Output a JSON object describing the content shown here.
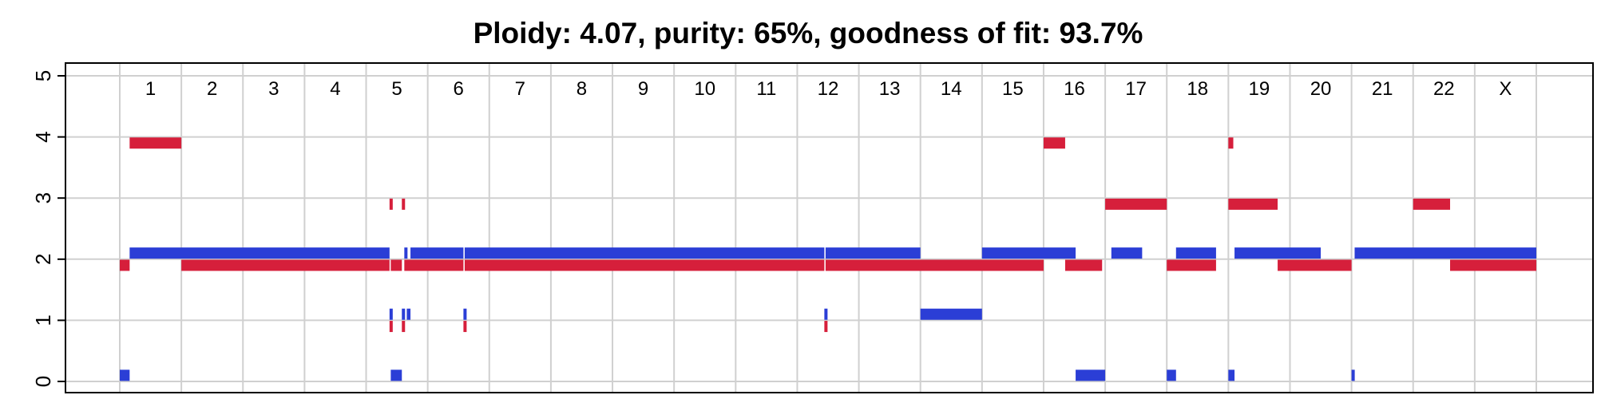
{
  "chart_data": {
    "type": "segments",
    "title": "Ploidy: 4.07, purity: 65%, goodness of fit: 93.7%",
    "xlabel": "",
    "ylabel": "",
    "ylim": [
      0,
      5
    ],
    "yticks": [
      "0",
      "1",
      "2",
      "3",
      "4",
      "5"
    ],
    "grid": true,
    "x_unit": "genome position (chromosome index, cumulative)",
    "chromosomes": [
      "1",
      "2",
      "3",
      "4",
      "5",
      "6",
      "7",
      "8",
      "9",
      "10",
      "11",
      "12",
      "13",
      "14",
      "15",
      "16",
      "17",
      "18",
      "19",
      "20",
      "21",
      "22",
      "X"
    ],
    "chromosome_boundaries": [
      1.0,
      2.0,
      3.0,
      4.0,
      5.0,
      6.0,
      7.0,
      8.0,
      9.0,
      10.0,
      11.0,
      12.0,
      13.0,
      14.0,
      15.0,
      16.0,
      17.0,
      18.0,
      19.0,
      20.0,
      21.0,
      22.0,
      23.0
    ],
    "series": [
      {
        "name": "",
        "color": "#2b3ed6",
        "segments": [
          {
            "x0": 0.0,
            "x1": 0.16,
            "y": 0.1
          },
          {
            "x0": 0.16,
            "x1": 4.38,
            "y": 2.1
          },
          {
            "x0": 4.38,
            "x1": 4.4,
            "y": 1.1
          },
          {
            "x0": 4.4,
            "x1": 4.58,
            "y": 0.1
          },
          {
            "x0": 4.58,
            "x1": 4.62,
            "y": 1.1
          },
          {
            "x0": 4.62,
            "x1": 4.66,
            "y": 2.1
          },
          {
            "x0": 4.66,
            "x1": 4.72,
            "y": 1.1
          },
          {
            "x0": 4.72,
            "x1": 5.58,
            "y": 2.1
          },
          {
            "x0": 5.58,
            "x1": 5.6,
            "y": 1.1
          },
          {
            "x0": 5.6,
            "x1": 11.44,
            "y": 2.1
          },
          {
            "x0": 11.44,
            "x1": 11.46,
            "y": 1.1
          },
          {
            "x0": 11.46,
            "x1": 13.0,
            "y": 2.1
          },
          {
            "x0": 13.0,
            "x1": 14.0,
            "y": 1.1
          },
          {
            "x0": 14.0,
            "x1": 15.52,
            "y": 2.1
          },
          {
            "x0": 15.52,
            "x1": 16.0,
            "y": 0.1
          },
          {
            "x0": 16.1,
            "x1": 16.6,
            "y": 2.1
          },
          {
            "x0": 17.0,
            "x1": 17.15,
            "y": 0.1
          },
          {
            "x0": 17.15,
            "x1": 17.8,
            "y": 2.1
          },
          {
            "x0": 18.0,
            "x1": 18.1,
            "y": 0.1
          },
          {
            "x0": 18.1,
            "x1": 19.5,
            "y": 2.1
          },
          {
            "x0": 20.0,
            "x1": 20.05,
            "y": 0.1
          },
          {
            "x0": 20.05,
            "x1": 23.0,
            "y": 2.1
          }
        ]
      },
      {
        "name": "",
        "color": "#d61f3b",
        "segments": [
          {
            "x0": 0.0,
            "x1": 0.16,
            "y": 1.9
          },
          {
            "x0": 0.16,
            "x1": 1.0,
            "y": 3.9
          },
          {
            "x0": 1.0,
            "x1": 4.38,
            "y": 1.9
          },
          {
            "x0": 4.38,
            "x1": 4.4,
            "y": 2.9
          },
          {
            "x0": 4.38,
            "x1": 4.4,
            "y": 0.9
          },
          {
            "x0": 4.4,
            "x1": 4.58,
            "y": 1.9
          },
          {
            "x0": 4.58,
            "x1": 4.62,
            "y": 2.9
          },
          {
            "x0": 4.58,
            "x1": 4.62,
            "y": 0.9
          },
          {
            "x0": 4.62,
            "x1": 5.58,
            "y": 1.9
          },
          {
            "x0": 5.58,
            "x1": 5.6,
            "y": 0.9
          },
          {
            "x0": 5.6,
            "x1": 11.44,
            "y": 1.9
          },
          {
            "x0": 11.44,
            "x1": 11.46,
            "y": 0.9
          },
          {
            "x0": 11.46,
            "x1": 15.0,
            "y": 1.9
          },
          {
            "x0": 15.0,
            "x1": 15.35,
            "y": 3.9
          },
          {
            "x0": 15.35,
            "x1": 15.95,
            "y": 1.9
          },
          {
            "x0": 16.0,
            "x1": 17.0,
            "y": 2.9
          },
          {
            "x0": 17.0,
            "x1": 17.8,
            "y": 1.9
          },
          {
            "x0": 18.0,
            "x1": 18.08,
            "y": 3.9
          },
          {
            "x0": 18.0,
            "x1": 18.8,
            "y": 2.9
          },
          {
            "x0": 18.8,
            "x1": 20.0,
            "y": 1.9
          },
          {
            "x0": 21.0,
            "x1": 21.6,
            "y": 2.9
          },
          {
            "x0": 21.6,
            "x1": 23.0,
            "y": 1.9
          }
        ]
      }
    ]
  }
}
